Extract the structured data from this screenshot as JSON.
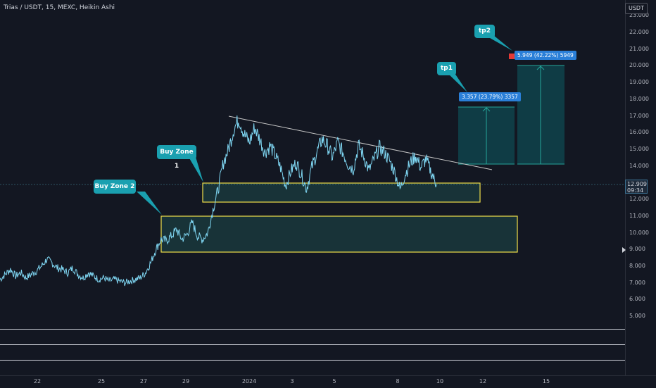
{
  "header": {
    "symbol_title": "Trias / USDT, 15, MEXC, Heikin Ashi",
    "currency": "USDT"
  },
  "price_scale": {
    "labels": [
      "23.000",
      "22.000",
      "21.000",
      "20.000",
      "19.000",
      "18.000",
      "17.000",
      "16.000",
      "15.000",
      "14.000",
      "13.000",
      "12.000",
      "11.000",
      "10.000",
      "9.000",
      "8.000",
      "7.000",
      "6.000",
      "5.000"
    ],
    "last_price": "12.909",
    "countdown": "09:34"
  },
  "time_scale": {
    "labels": [
      "22",
      "25",
      "27",
      "29",
      "2024",
      "3",
      "5",
      "8",
      "10",
      "12",
      "15"
    ]
  },
  "annotations": {
    "buy_zone_1": "Buy Zone 1",
    "buy_zone_2": "Buy Zone 2",
    "tp1": "tp1",
    "tp2": "tp2",
    "tp1_label": "3.357 (23.79%) 3357",
    "tp2_label": "5.949 (42.22%) 5949"
  },
  "colors": {
    "background": "#131722",
    "price_line": "#7fd6f2",
    "zone_border": "#f0e04a",
    "zone_fill": "#1e4a4a",
    "target_fill": "#0f4a52",
    "target_line": "#26a69a",
    "callout": "#1aa0b0",
    "label_blue": "#2a7fd8",
    "trendline": "#c8c8c8"
  },
  "chart_data": {
    "type": "line",
    "style": "Heikin Ashi",
    "interval": "15",
    "x_ticks": [
      "22",
      "25",
      "27",
      "29",
      "2024",
      "3",
      "5",
      "8",
      "10",
      "12",
      "15"
    ],
    "ylim": [
      4.5,
      23.5
    ],
    "y_ticks": [
      "23.000",
      "22.000",
      "21.000",
      "20.000",
      "19.000",
      "18.000",
      "17.000",
      "16.000",
      "15.000",
      "14.000",
      "13.000",
      "12.000",
      "11.000",
      "10.000",
      "9.000",
      "8.000",
      "7.000",
      "6.000",
      "5.000"
    ],
    "series": [
      {
        "values": [
          7.2,
          7.5,
          7.8,
          7.4,
          7.6,
          7.3,
          7.5,
          7.7,
          8.0,
          8.4,
          8.2,
          7.9,
          7.8,
          7.6,
          7.9,
          7.5,
          7.3,
          7.6,
          7.4,
          7.2,
          7.3,
          7.1,
          7.2,
          7.1,
          7.0,
          7.1,
          7.2,
          7.3,
          7.6,
          8.2,
          9.0,
          9.6,
          9.5,
          9.8,
          10.2,
          9.6,
          9.9,
          10.6,
          9.8,
          9.6,
          10.0,
          11.4,
          12.6,
          14.2,
          15.0,
          16.2,
          16.8,
          15.9,
          15.4,
          16.3,
          15.6,
          14.8,
          15.2,
          14.6,
          13.9,
          12.8,
          13.7,
          14.2,
          13.5,
          12.6,
          13.9,
          14.8,
          15.6,
          15.2,
          14.5,
          15.4,
          14.8,
          14.1,
          13.8,
          15.2,
          14.6,
          13.7,
          14.4,
          15.1,
          14.8,
          14.3,
          13.6,
          12.6,
          13.5,
          14.2,
          14.6,
          13.9,
          14.4,
          13.6,
          12.9
        ]
      }
    ],
    "zones": [
      {
        "name": "Buy Zone 1",
        "from": 11.9,
        "to": 13.1
      },
      {
        "name": "Buy Zone 2",
        "from": 8.8,
        "to": 11.0
      }
    ],
    "targets": [
      {
        "name": "tp1",
        "from": 14.1,
        "to": 17.5,
        "label": "3.357 (23.79%) 3357"
      },
      {
        "name": "tp2",
        "from": 14.1,
        "to": 20.0,
        "label": "5.949 (42.22%) 5949"
      }
    ]
  }
}
